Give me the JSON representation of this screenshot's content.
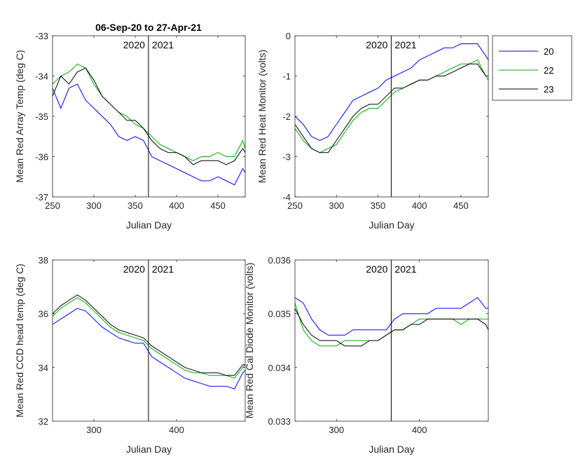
{
  "figure_title": "06-Sep-20 to 27-Apr-21",
  "year_divider": {
    "x": 366,
    "left_label": "2020",
    "right_label": "2021"
  },
  "legend": [
    {
      "name": "20",
      "color": "#0000ff"
    },
    {
      "name": "22",
      "color": "#00aa00"
    },
    {
      "name": "23",
      "color": "#000000"
    }
  ],
  "chart_data": [
    {
      "type": "line",
      "xlabel": "Julian Day",
      "ylabel": "Mean Red Array Temp (deg C)",
      "xlim": [
        250,
        483
      ],
      "ylim": [
        -37,
        -33
      ],
      "xticks": [
        250,
        300,
        350,
        400,
        450
      ],
      "yticks": [
        -37,
        -36,
        -35,
        -34,
        -33
      ],
      "x": [
        250,
        260,
        270,
        280,
        290,
        300,
        310,
        320,
        330,
        340,
        350,
        360,
        370,
        380,
        390,
        400,
        410,
        420,
        430,
        440,
        450,
        460,
        470,
        480,
        483
      ],
      "series": [
        {
          "name": "20",
          "values": [
            -34.3,
            -34.8,
            -34.3,
            -34.2,
            -34.6,
            -34.8,
            -35.0,
            -35.2,
            -35.5,
            -35.6,
            -35.5,
            -35.6,
            -36.0,
            -36.1,
            -36.2,
            -36.3,
            -36.4,
            -36.5,
            -36.6,
            -36.6,
            -36.5,
            -36.6,
            -36.7,
            -36.3,
            -36.4
          ]
        },
        {
          "name": "22",
          "values": [
            -34.2,
            -34.0,
            -33.9,
            -33.7,
            -33.8,
            -34.2,
            -34.5,
            -34.7,
            -34.9,
            -35.0,
            -35.2,
            -35.3,
            -35.5,
            -35.7,
            -35.8,
            -35.9,
            -36.0,
            -36.1,
            -36.0,
            -36.0,
            -35.9,
            -36.0,
            -36.0,
            -35.6,
            -35.8
          ]
        },
        {
          "name": "23",
          "values": [
            -34.5,
            -34.0,
            -34.2,
            -33.9,
            -33.8,
            -34.1,
            -34.5,
            -34.7,
            -34.9,
            -35.1,
            -35.1,
            -35.3,
            -35.6,
            -35.8,
            -35.9,
            -35.9,
            -36.0,
            -36.2,
            -36.1,
            -36.1,
            -36.1,
            -36.2,
            -36.1,
            -35.8,
            -35.9
          ]
        }
      ]
    },
    {
      "type": "line",
      "xlabel": "Julian Day",
      "ylabel": "Mean Red Heat Monitor (volts)",
      "xlim": [
        250,
        483
      ],
      "ylim": [
        -4,
        0
      ],
      "xticks": [
        250,
        300,
        350,
        400,
        450
      ],
      "yticks": [
        -4,
        -3,
        -2,
        -1,
        0
      ],
      "x": [
        250,
        260,
        270,
        280,
        290,
        300,
        310,
        320,
        330,
        340,
        350,
        360,
        370,
        380,
        390,
        400,
        410,
        420,
        430,
        440,
        450,
        460,
        470,
        480,
        483
      ],
      "series": [
        {
          "name": "20",
          "values": [
            -2.0,
            -2.2,
            -2.5,
            -2.6,
            -2.5,
            -2.2,
            -1.9,
            -1.6,
            -1.5,
            -1.4,
            -1.3,
            -1.1,
            -1.0,
            -0.9,
            -0.8,
            -0.6,
            -0.5,
            -0.4,
            -0.3,
            -0.3,
            -0.2,
            -0.2,
            -0.2,
            -0.5,
            -0.6
          ]
        },
        {
          "name": "22",
          "values": [
            -2.3,
            -2.6,
            -2.8,
            -2.9,
            -2.8,
            -2.7,
            -2.4,
            -2.1,
            -1.9,
            -1.8,
            -1.8,
            -1.6,
            -1.4,
            -1.3,
            -1.2,
            -1.1,
            -1.1,
            -1.0,
            -0.9,
            -0.8,
            -0.7,
            -0.7,
            -0.6,
            -1.0,
            -1.1
          ]
        },
        {
          "name": "23",
          "values": [
            -2.2,
            -2.5,
            -2.8,
            -2.9,
            -2.9,
            -2.6,
            -2.3,
            -2.0,
            -1.8,
            -1.7,
            -1.7,
            -1.5,
            -1.3,
            -1.3,
            -1.2,
            -1.1,
            -1.1,
            -1.0,
            -1.0,
            -0.9,
            -0.8,
            -0.7,
            -0.7,
            -1.0,
            -1.0
          ]
        }
      ]
    },
    {
      "type": "line",
      "xlabel": "Julian Day",
      "ylabel": "Mean Red CCD head temp (deg C)",
      "xlim": [
        250,
        483
      ],
      "ylim": [
        32,
        38
      ],
      "xticks": [
        300,
        400
      ],
      "yticks": [
        32,
        34,
        36,
        38
      ],
      "x": [
        250,
        260,
        270,
        280,
        290,
        300,
        310,
        320,
        330,
        340,
        350,
        360,
        370,
        380,
        390,
        400,
        410,
        420,
        430,
        440,
        450,
        460,
        470,
        480,
        483
      ],
      "series": [
        {
          "name": "20",
          "values": [
            35.6,
            35.8,
            36.0,
            36.2,
            36.1,
            35.8,
            35.5,
            35.3,
            35.1,
            35.0,
            34.9,
            34.9,
            34.4,
            34.2,
            34.0,
            33.8,
            33.6,
            33.5,
            33.4,
            33.3,
            33.3,
            33.3,
            33.2,
            33.8,
            33.9
          ]
        },
        {
          "name": "22",
          "values": [
            35.9,
            36.2,
            36.4,
            36.6,
            36.4,
            36.1,
            35.8,
            35.5,
            35.3,
            35.2,
            35.1,
            35.0,
            34.7,
            34.5,
            34.3,
            34.1,
            33.9,
            33.8,
            33.8,
            33.7,
            33.7,
            33.7,
            33.6,
            34.0,
            34.1
          ]
        },
        {
          "name": "23",
          "values": [
            36.0,
            36.3,
            36.5,
            36.7,
            36.5,
            36.2,
            35.9,
            35.6,
            35.4,
            35.3,
            35.2,
            35.1,
            34.8,
            34.6,
            34.4,
            34.2,
            34.0,
            33.9,
            33.8,
            33.8,
            33.8,
            33.7,
            33.7,
            34.1,
            34.1
          ]
        }
      ]
    },
    {
      "type": "line",
      "xlabel": "Julian Day",
      "ylabel": "Mean Red Cal Diode Monitor (volts)",
      "xlim": [
        250,
        483
      ],
      "ylim": [
        0.033,
        0.036
      ],
      "xticks": [
        300,
        400
      ],
      "yticks": [
        0.033,
        0.034,
        0.035,
        0.036
      ],
      "x": [
        250,
        260,
        270,
        280,
        290,
        300,
        310,
        320,
        330,
        340,
        350,
        360,
        370,
        380,
        390,
        400,
        410,
        420,
        430,
        440,
        450,
        460,
        470,
        480,
        483
      ],
      "series": [
        {
          "name": "20",
          "values": [
            0.0353,
            0.0352,
            0.0349,
            0.0347,
            0.0346,
            0.0346,
            0.0346,
            0.0347,
            0.0347,
            0.0347,
            0.0347,
            0.0347,
            0.0349,
            0.035,
            0.035,
            0.035,
            0.035,
            0.0351,
            0.0351,
            0.0351,
            0.0351,
            0.0352,
            0.0353,
            0.0351,
            0.0351
          ]
        },
        {
          "name": "22",
          "values": [
            0.0352,
            0.0347,
            0.0345,
            0.0344,
            0.0344,
            0.0344,
            0.0345,
            0.0345,
            0.0345,
            0.0345,
            0.0345,
            0.0346,
            0.0347,
            0.0347,
            0.0348,
            0.0349,
            0.0349,
            0.0349,
            0.0349,
            0.0349,
            0.0348,
            0.0349,
            0.0349,
            0.0349,
            0.0349
          ]
        },
        {
          "name": "23",
          "values": [
            0.0351,
            0.0348,
            0.0346,
            0.0345,
            0.0345,
            0.0345,
            0.0344,
            0.0344,
            0.0344,
            0.0345,
            0.0345,
            0.0346,
            0.0347,
            0.0347,
            0.0348,
            0.0348,
            0.0349,
            0.0349,
            0.0349,
            0.0349,
            0.0349,
            0.0349,
            0.0349,
            0.0348,
            0.0347
          ]
        }
      ]
    }
  ]
}
